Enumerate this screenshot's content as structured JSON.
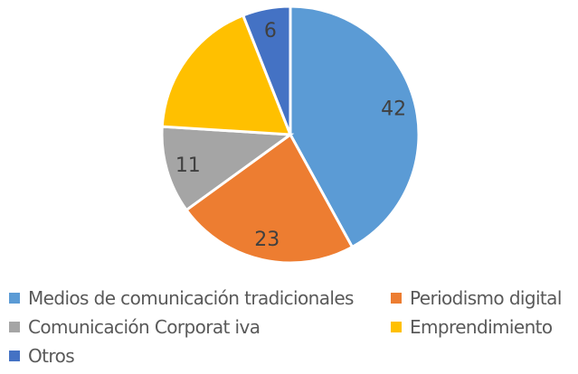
{
  "chart_data": {
    "type": "pie",
    "title": "",
    "start_angle_deg": 0,
    "direction": "clockwise",
    "legend_position": "bottom",
    "slices": [
      {
        "label": "Medios de comunicación tradicionales",
        "value": 42,
        "data_label": "42",
        "color": "#5B9BD5"
      },
      {
        "label": "Periodismo digital",
        "value": 23,
        "data_label": "23",
        "color": "#ED7D31"
      },
      {
        "label": "Comunicación Corporat iva",
        "value": 11,
        "data_label": "11",
        "color": "#A5A5A5"
      },
      {
        "label": "Emprendimiento",
        "value": 18,
        "data_label": null,
        "color": "#FFC000"
      },
      {
        "label": "Otros",
        "value": 6,
        "data_label": "6",
        "color": "#4472C4"
      }
    ]
  }
}
